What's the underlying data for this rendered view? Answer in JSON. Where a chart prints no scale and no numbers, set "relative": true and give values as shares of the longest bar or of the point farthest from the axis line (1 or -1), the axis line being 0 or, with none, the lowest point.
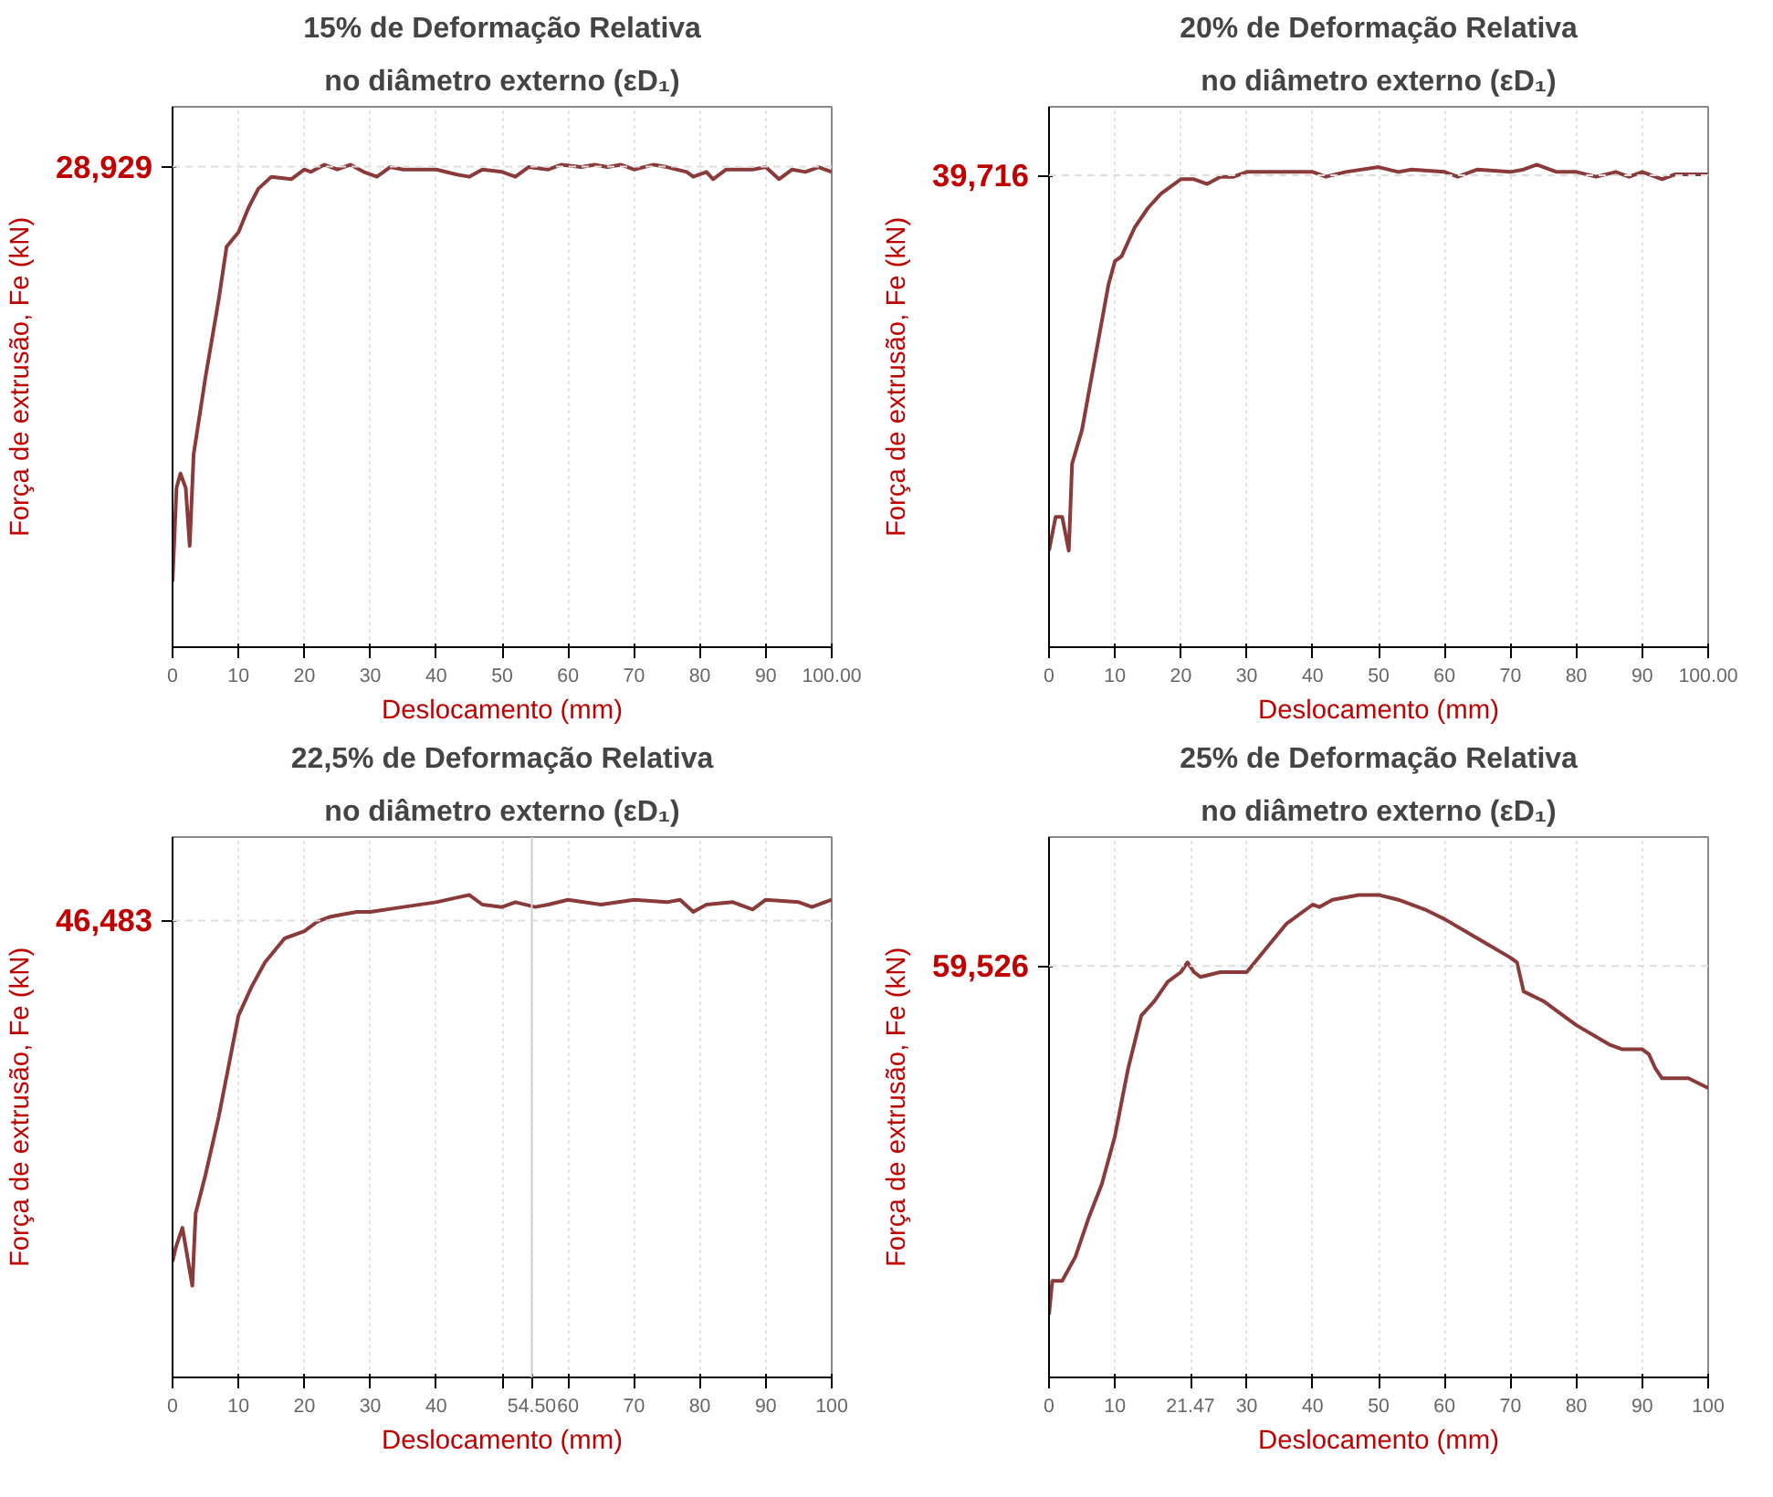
{
  "chart_data": [
    {
      "type": "line",
      "title": "15% de Deformação Relativa",
      "subtitle": "no diâmetro externo (εD₁)",
      "xlabel": "Deslocamento (mm)",
      "ylabel": "Força de extrusão, Fe (kN)",
      "relative": true,
      "grid": "x",
      "xlim": [
        0,
        100
      ],
      "xticks": [
        0,
        10,
        20,
        30,
        40,
        50,
        60,
        70,
        80,
        90,
        {
          "value": 100,
          "label": "100.00"
        }
      ],
      "annotations": [
        "28,929"
      ],
      "ref_lines": [
        {
          "axis": "y",
          "value": 0.996,
          "label": null,
          "color": "#dddddd",
          "line_style": "dashed"
        }
      ],
      "series": [
        {
          "color": "#8b3a3a",
          "x": [
            0,
            0.6,
            1.2,
            2,
            2.6,
            3.2,
            5,
            7,
            8.2,
            10,
            11.5,
            13,
            15,
            18,
            20,
            21,
            23,
            25,
            27,
            29,
            31,
            33,
            35,
            40,
            43,
            45,
            47,
            50,
            52,
            54,
            57,
            59,
            62,
            64,
            66,
            68,
            70,
            73,
            75,
            78,
            79,
            81,
            82,
            84,
            88,
            90,
            92,
            94,
            96,
            98,
            100
          ],
          "values": [
            0.136,
            0.33,
            0.36,
            0.33,
            0.21,
            0.4,
            0.56,
            0.72,
            0.83,
            0.86,
            0.91,
            0.95,
            0.975,
            0.97,
            0.99,
            0.985,
            1.0,
            0.99,
            1.0,
            0.985,
            0.975,
            0.995,
            0.99,
            0.99,
            0.98,
            0.975,
            0.99,
            0.985,
            0.975,
            0.995,
            0.99,
            1.0,
            0.995,
            1.0,
            0.995,
            1.0,
            0.99,
            1.0,
            0.995,
            0.985,
            0.975,
            0.985,
            0.97,
            0.99,
            0.99,
            0.995,
            0.97,
            0.99,
            0.985,
            0.995,
            0.985
          ]
        }
      ]
    },
    {
      "type": "line",
      "title": "20% de Deformação Relativa",
      "subtitle": "no diâmetro externo (εD₁)",
      "xlabel": "Deslocamento (mm)",
      "ylabel": "Força de extrusão, Fe (kN)",
      "relative": true,
      "grid": "x",
      "xlim": [
        0,
        100
      ],
      "xticks": [
        0,
        10,
        20,
        30,
        40,
        50,
        60,
        70,
        80,
        90,
        {
          "value": 100,
          "label": "100.00"
        }
      ],
      "annotations": [
        "39,716"
      ],
      "ref_lines": [
        {
          "axis": "y",
          "value": 0.978,
          "label": null,
          "color": "#dddddd",
          "line_style": "dashed"
        }
      ],
      "series": [
        {
          "color": "#8b3a3a",
          "x": [
            0,
            0.5,
            1,
            2,
            3,
            3.5,
            5,
            7,
            9,
            10,
            11,
            13,
            15,
            17,
            20,
            22,
            24,
            26,
            28,
            30,
            35,
            40,
            42,
            45,
            50,
            53,
            55,
            60,
            62,
            65,
            70,
            72,
            74,
            77,
            80,
            83,
            86,
            88,
            90,
            93,
            95,
            100
          ],
          "values": [
            0.2,
            0.235,
            0.27,
            0.27,
            0.2,
            0.38,
            0.45,
            0.6,
            0.75,
            0.8,
            0.81,
            0.87,
            0.91,
            0.94,
            0.97,
            0.97,
            0.96,
            0.975,
            0.975,
            0.985,
            0.985,
            0.985,
            0.975,
            0.985,
            0.995,
            0.985,
            0.99,
            0.985,
            0.975,
            0.99,
            0.985,
            0.99,
            1.0,
            0.985,
            0.985,
            0.975,
            0.985,
            0.975,
            0.985,
            0.97,
            0.98,
            0.98
          ]
        }
      ]
    },
    {
      "type": "line",
      "title": "22,5% de Deformação Relativa",
      "subtitle": "no diâmetro externo (εD₁)",
      "xlabel": "Deslocamento (mm)",
      "ylabel": "Força de extrusão, Fe (kN)",
      "relative": true,
      "grid": "x",
      "xlim": [
        0,
        100
      ],
      "xticks": [
        0,
        10,
        20,
        30,
        40,
        {
          "value": 50,
          "label": null
        },
        {
          "value": 54.5,
          "label": "54.50"
        },
        60,
        70,
        80,
        90,
        100
      ],
      "ref_lines": [
        {
          "axis": "x",
          "value": 54.5,
          "label": null,
          "color": "#d0d0d0"
        },
        {
          "axis": "y",
          "value": 0.947,
          "label": null,
          "color": "#dddddd",
          "line_style": "dashed"
        }
      ],
      "annotations": [
        "46,483"
      ],
      "series": [
        {
          "color": "#8b3a3a",
          "x": [
            0,
            0.5,
            1.5,
            3,
            3.5,
            5,
            7,
            9,
            10,
            12,
            14,
            17,
            20,
            22,
            24,
            26,
            28,
            30,
            35,
            40,
            45,
            47,
            50,
            52,
            55,
            57,
            60,
            65,
            70,
            75,
            77,
            79,
            81,
            85,
            88,
            90,
            95,
            97,
            100
          ],
          "values": [
            0.24,
            0.27,
            0.31,
            0.19,
            0.34,
            0.42,
            0.54,
            0.68,
            0.75,
            0.81,
            0.86,
            0.91,
            0.925,
            0.945,
            0.955,
            0.96,
            0.965,
            0.965,
            0.975,
            0.985,
            1.0,
            0.98,
            0.975,
            0.985,
            0.975,
            0.98,
            0.99,
            0.98,
            0.99,
            0.985,
            0.99,
            0.965,
            0.98,
            0.985,
            0.97,
            0.99,
            0.985,
            0.975,
            0.99
          ]
        }
      ]
    },
    {
      "type": "line",
      "title": "25% de Deformação Relativa",
      "subtitle": "no diâmetro externo (εD₁)",
      "xlabel": "Deslocamento (mm)",
      "ylabel": "Força de extrusão, Fe (kN)",
      "relative": true,
      "grid": "x",
      "xlim": [
        0,
        100
      ],
      "xticks": [
        0,
        10,
        {
          "value": 21.47,
          "label": "21.47"
        },
        30,
        40,
        50,
        60,
        70,
        80,
        90,
        100
      ],
      "annotations": [
        "59,526"
      ],
      "ref_lines": [
        {
          "axis": "y",
          "value": 0.853,
          "label": null,
          "color": "#dddddd",
          "line_style": "dashed"
        }
      ],
      "series": [
        {
          "color": "#8b3a3a",
          "x": [
            0,
            0.5,
            2,
            4,
            6,
            8,
            10,
            12,
            14,
            16,
            18,
            20,
            21,
            22,
            23,
            26,
            30,
            33,
            36,
            40,
            41,
            43,
            47,
            50,
            53,
            57,
            60,
            65,
            70,
            71,
            72,
            75,
            80,
            85,
            87,
            90,
            91,
            92,
            93,
            97,
            100
          ],
          "values": [
            0.13,
            0.2,
            0.2,
            0.25,
            0.33,
            0.4,
            0.5,
            0.64,
            0.75,
            0.78,
            0.82,
            0.84,
            0.86,
            0.84,
            0.83,
            0.84,
            0.84,
            0.89,
            0.94,
            0.98,
            0.975,
            0.99,
            1.0,
            1.0,
            0.99,
            0.97,
            0.95,
            0.91,
            0.87,
            0.86,
            0.8,
            0.78,
            0.73,
            0.69,
            0.68,
            0.68,
            0.67,
            0.64,
            0.62,
            0.62,
            0.6
          ]
        }
      ]
    }
  ]
}
